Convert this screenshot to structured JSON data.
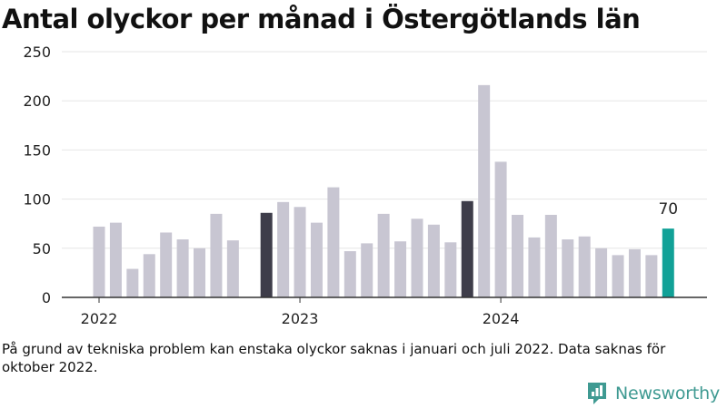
{
  "header": {
    "title": "Antal olyckor per månad i Östergötlands län"
  },
  "chart_data": {
    "type": "bar",
    "title": "Antal olyckor per månad i Östergötlands län",
    "xlabel": "",
    "ylabel": "",
    "ylim": [
      0,
      250
    ],
    "yticks": [
      0,
      50,
      100,
      150,
      200,
      250
    ],
    "grid": true,
    "x_tick_labels": [
      {
        "label": "2022",
        "month": "2022-01"
      },
      {
        "label": "2023",
        "month": "2023-01"
      },
      {
        "label": "2024",
        "month": "2024-01"
      }
    ],
    "months": [
      "2022-01",
      "2022-02",
      "2022-03",
      "2022-04",
      "2022-05",
      "2022-06",
      "2022-07",
      "2022-08",
      "2022-09",
      "2022-10",
      "2022-11",
      "2022-12",
      "2023-01",
      "2023-02",
      "2023-03",
      "2023-04",
      "2023-05",
      "2023-06",
      "2023-07",
      "2023-08",
      "2023-09",
      "2023-10",
      "2023-11",
      "2023-12",
      "2024-01",
      "2024-02",
      "2024-03",
      "2024-04",
      "2024-05",
      "2024-06",
      "2024-07",
      "2024-08",
      "2024-09",
      "2024-10",
      "2024-11"
    ],
    "values": [
      72,
      76,
      29,
      44,
      66,
      59,
      50,
      85,
      58,
      null,
      86,
      97,
      92,
      76,
      112,
      47,
      55,
      85,
      57,
      80,
      74,
      56,
      98,
      216,
      138,
      84,
      61,
      84,
      59,
      62,
      50,
      43,
      49,
      43,
      70
    ],
    "colors": {
      "default": "#c8c6d2",
      "november": "#3e3d4a",
      "latest": "#11a197",
      "grid": "#e6e6e6",
      "axis": "#333333"
    },
    "annotation": {
      "month": "2024-11",
      "label": "70"
    }
  },
  "footnote": "På grund av tekniska problem kan enstaka olyckor saknas i januari och juli 2022. Data saknas för oktober 2022.",
  "brand": {
    "name": "Newsworthy",
    "icon": "newsworthy-logo-icon",
    "color": "#3f9a92"
  }
}
